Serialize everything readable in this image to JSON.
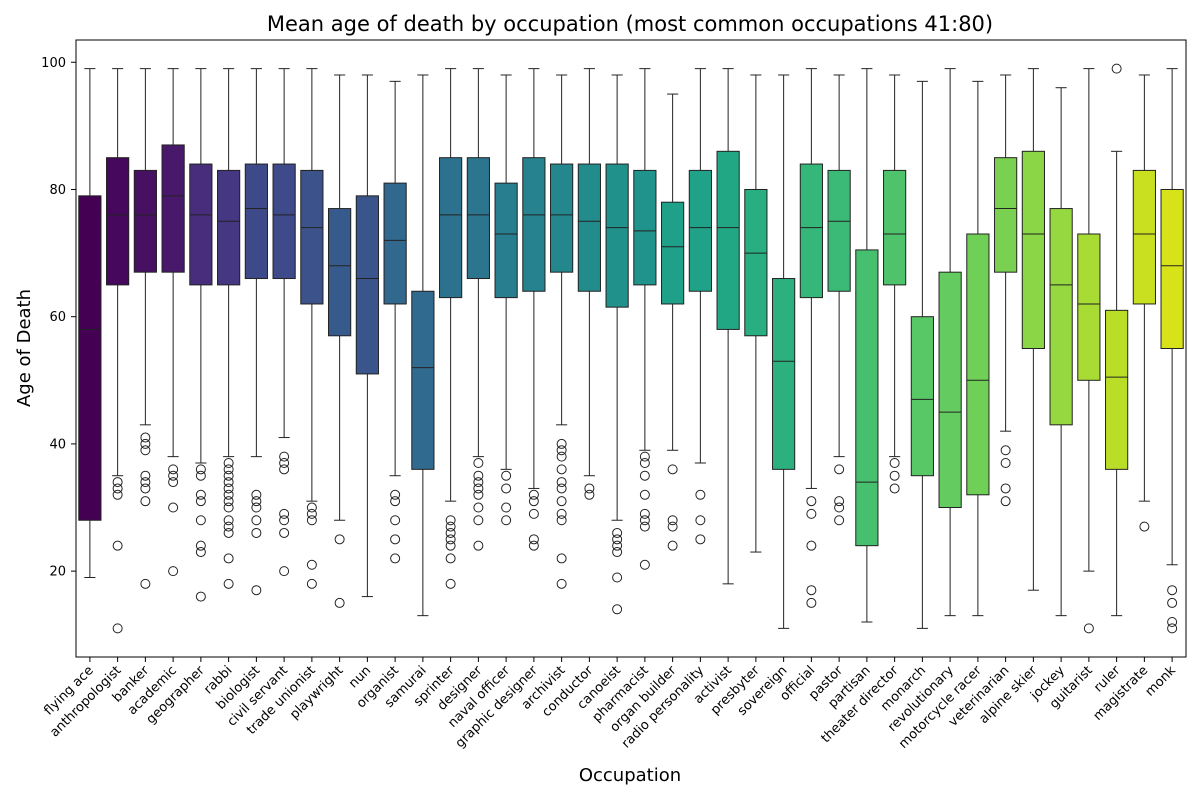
{
  "chart_data": {
    "type": "box",
    "title": "Mean age of death by occupation (most common occupations 41:80)",
    "xlabel": "Occupation",
    "ylabel": "Age of Death",
    "ylim": [
      6.5,
      103.5
    ],
    "yticks": [
      20,
      40,
      60,
      80,
      100
    ],
    "grid": false,
    "legend": "none",
    "series": [
      {
        "name": "flying ace",
        "color": "#440154",
        "q1": 28,
        "median": 58,
        "q3": 79,
        "whisker_low": 19,
        "whisker_high": 99,
        "outliers": []
      },
      {
        "name": "anthropologist",
        "color": "#46085c",
        "q1": 65,
        "median": 76,
        "q3": 85,
        "whisker_low": 35,
        "whisker_high": 99,
        "outliers": [
          34,
          33,
          32,
          24,
          11
        ]
      },
      {
        "name": "banker",
        "color": "#471063",
        "q1": 67,
        "median": 76,
        "q3": 83,
        "whisker_low": 43,
        "whisker_high": 99,
        "outliers": [
          41,
          40,
          39,
          35,
          34,
          33,
          31,
          18
        ]
      },
      {
        "name": "academic",
        "color": "#48186a",
        "q1": 67,
        "median": 79,
        "q3": 87,
        "whisker_low": 38,
        "whisker_high": 99,
        "outliers": [
          36,
          35,
          34,
          30,
          20
        ]
      },
      {
        "name": "geographer",
        "color": "#472d7b",
        "q1": 65,
        "median": 76,
        "q3": 84,
        "whisker_low": 37,
        "whisker_high": 99,
        "outliers": [
          36,
          35,
          32,
          31,
          28,
          24,
          23,
          16
        ]
      },
      {
        "name": "rabbi",
        "color": "#453781",
        "q1": 65,
        "median": 75,
        "q3": 83,
        "whisker_low": 38,
        "whisker_high": 99,
        "outliers": [
          37,
          36,
          35,
          34,
          33,
          32,
          31,
          30,
          28,
          27,
          26,
          22,
          18
        ]
      },
      {
        "name": "biologist",
        "color": "#3e4989",
        "q1": 66,
        "median": 77,
        "q3": 84,
        "whisker_low": 38,
        "whisker_high": 99,
        "outliers": [
          32,
          31,
          30,
          28,
          26,
          17
        ]
      },
      {
        "name": "civil servant",
        "color": "#3e4a89",
        "q1": 66,
        "median": 76,
        "q3": 84,
        "whisker_low": 41,
        "whisker_high": 99,
        "outliers": [
          38,
          37,
          36,
          29,
          28,
          26,
          20
        ]
      },
      {
        "name": "trade unionist",
        "color": "#3b528b",
        "q1": 62,
        "median": 74,
        "q3": 83,
        "whisker_low": 31,
        "whisker_high": 99,
        "outliers": [
          30,
          29,
          28,
          21,
          18
        ]
      },
      {
        "name": "playwright",
        "color": "#375a8c",
        "q1": 57,
        "median": 68,
        "q3": 77,
        "whisker_low": 28,
        "whisker_high": 98,
        "outliers": [
          25,
          15
        ]
      },
      {
        "name": "nun",
        "color": "#39558c",
        "q1": 51,
        "median": 66,
        "q3": 79,
        "whisker_low": 16,
        "whisker_high": 98,
        "outliers": []
      },
      {
        "name": "organist",
        "color": "#31688e",
        "q1": 62,
        "median": 72,
        "q3": 81,
        "whisker_low": 35,
        "whisker_high": 97,
        "outliers": [
          32,
          31,
          28,
          25,
          22
        ]
      },
      {
        "name": "samurai",
        "color": "#306a8e",
        "q1": 36,
        "median": 52,
        "q3": 64,
        "whisker_low": 13,
        "whisker_high": 98,
        "outliers": []
      },
      {
        "name": "sprinter",
        "color": "#2c728e",
        "q1": 63,
        "median": 76,
        "q3": 85,
        "whisker_low": 31,
        "whisker_high": 99,
        "outliers": [
          28,
          27,
          26,
          25,
          24,
          22,
          18
        ]
      },
      {
        "name": "designer",
        "color": "#2b758e",
        "q1": 66,
        "median": 76,
        "q3": 85,
        "whisker_low": 38,
        "whisker_high": 99,
        "outliers": [
          37,
          35,
          34,
          33,
          32,
          30,
          28,
          24
        ]
      },
      {
        "name": "naval officer",
        "color": "#287d8e",
        "q1": 63,
        "median": 73,
        "q3": 81,
        "whisker_low": 36,
        "whisker_high": 98,
        "outliers": [
          35,
          33,
          30,
          28
        ]
      },
      {
        "name": "graphic designer",
        "color": "#26828e",
        "q1": 64,
        "median": 76,
        "q3": 85,
        "whisker_low": 33,
        "whisker_high": 99,
        "outliers": [
          32,
          31,
          29,
          25,
          24
        ]
      },
      {
        "name": "archivist",
        "color": "#24878e",
        "q1": 67,
        "median": 76,
        "q3": 84,
        "whisker_low": 43,
        "whisker_high": 98,
        "outliers": [
          40,
          39,
          38,
          36,
          34,
          33,
          31,
          29,
          28,
          22,
          18
        ]
      },
      {
        "name": "conductor",
        "color": "#228c8d",
        "q1": 64,
        "median": 75,
        "q3": 84,
        "whisker_low": 35,
        "whisker_high": 99,
        "outliers": [
          33,
          32
        ]
      },
      {
        "name": "canoeist",
        "color": "#21918c",
        "q1": 61.5,
        "median": 74,
        "q3": 84,
        "whisker_low": 28,
        "whisker_high": 98,
        "outliers": [
          26,
          25,
          24,
          23,
          19,
          14
        ]
      },
      {
        "name": "pharmacist",
        "color": "#20938c",
        "q1": 65,
        "median": 73.5,
        "q3": 83,
        "whisker_low": 39,
        "whisker_high": 99,
        "outliers": [
          38,
          37,
          35,
          32,
          29,
          28,
          27,
          21
        ]
      },
      {
        "name": "organ builder",
        "color": "#1fa088",
        "q1": 62,
        "median": 71,
        "q3": 78,
        "whisker_low": 39,
        "whisker_high": 95,
        "outliers": [
          36,
          28,
          27,
          24
        ]
      },
      {
        "name": "radio personality",
        "color": "#1fa287",
        "q1": 64,
        "median": 74,
        "q3": 83,
        "whisker_low": 37,
        "whisker_high": 99,
        "outliers": [
          32,
          28,
          25
        ]
      },
      {
        "name": "activist",
        "color": "#22a785",
        "q1": 58,
        "median": 74,
        "q3": 86,
        "whisker_low": 18,
        "whisker_high": 99,
        "outliers": []
      },
      {
        "name": "presbyter",
        "color": "#28ae80",
        "q1": 57,
        "median": 70,
        "q3": 80,
        "whisker_low": 23,
        "whisker_high": 98,
        "outliers": []
      },
      {
        "name": "sovereign",
        "color": "#2cb17e",
        "q1": 36,
        "median": 53,
        "q3": 66,
        "whisker_low": 11,
        "whisker_high": 98,
        "outliers": []
      },
      {
        "name": "official",
        "color": "#35b779",
        "q1": 63,
        "median": 74,
        "q3": 84,
        "whisker_low": 33,
        "whisker_high": 99,
        "outliers": [
          31,
          29,
          24,
          17,
          15
        ]
      },
      {
        "name": "pastor",
        "color": "#3aba76",
        "q1": 64,
        "median": 75,
        "q3": 83,
        "whisker_low": 38,
        "whisker_high": 98,
        "outliers": [
          36,
          31,
          30,
          28
        ]
      },
      {
        "name": "partisan",
        "color": "#46c06f",
        "q1": 24,
        "median": 34,
        "q3": 70.5,
        "whisker_low": 12,
        "whisker_high": 99,
        "outliers": []
      },
      {
        "name": "theater director",
        "color": "#4ec36b",
        "q1": 65,
        "median": 73,
        "q3": 83,
        "whisker_low": 38,
        "whisker_high": 98,
        "outliers": [
          37,
          35,
          33
        ]
      },
      {
        "name": "monarch",
        "color": "#58c765",
        "q1": 35,
        "median": 47,
        "q3": 60,
        "whisker_low": 11,
        "whisker_high": 97,
        "outliers": []
      },
      {
        "name": "revolutionary",
        "color": "#63cb5f",
        "q1": 30,
        "median": 45,
        "q3": 67,
        "whisker_low": 13,
        "whisker_high": 99,
        "outliers": []
      },
      {
        "name": "motorcycle racer",
        "color": "#70cf57",
        "q1": 32,
        "median": 50,
        "q3": 73,
        "whisker_low": 13,
        "whisker_high": 97,
        "outliers": []
      },
      {
        "name": "veterinarian",
        "color": "#7ad151",
        "q1": 67,
        "median": 77,
        "q3": 85,
        "whisker_low": 42,
        "whisker_high": 98,
        "outliers": [
          39,
          37,
          33,
          31
        ]
      },
      {
        "name": "alpine skier",
        "color": "#8bd646",
        "q1": 55,
        "median": 73,
        "q3": 86,
        "whisker_low": 17,
        "whisker_high": 99,
        "outliers": []
      },
      {
        "name": "jockey",
        "color": "#95d840",
        "q1": 43,
        "median": 65,
        "q3": 77,
        "whisker_low": 13,
        "whisker_high": 96,
        "outliers": []
      },
      {
        "name": "guitarist",
        "color": "#a8db34",
        "q1": 50,
        "median": 62,
        "q3": 73,
        "whisker_low": 20,
        "whisker_high": 99,
        "outliers": [
          11
        ]
      },
      {
        "name": "ruler",
        "color": "#bade28",
        "q1": 36,
        "median": 50.5,
        "q3": 61,
        "whisker_low": 13,
        "whisker_high": 86,
        "outliers": [
          99
        ]
      },
      {
        "name": "magistrate",
        "color": "#c8e020",
        "q1": 62,
        "median": 73,
        "q3": 83,
        "whisker_low": 31,
        "whisker_high": 98,
        "outliers": [
          27
        ]
      },
      {
        "name": "monk",
        "color": "#d8e219",
        "q1": 55,
        "median": 68,
        "q3": 80,
        "whisker_low": 21,
        "whisker_high": 99,
        "outliers": [
          17,
          15,
          12,
          11
        ]
      }
    ]
  }
}
